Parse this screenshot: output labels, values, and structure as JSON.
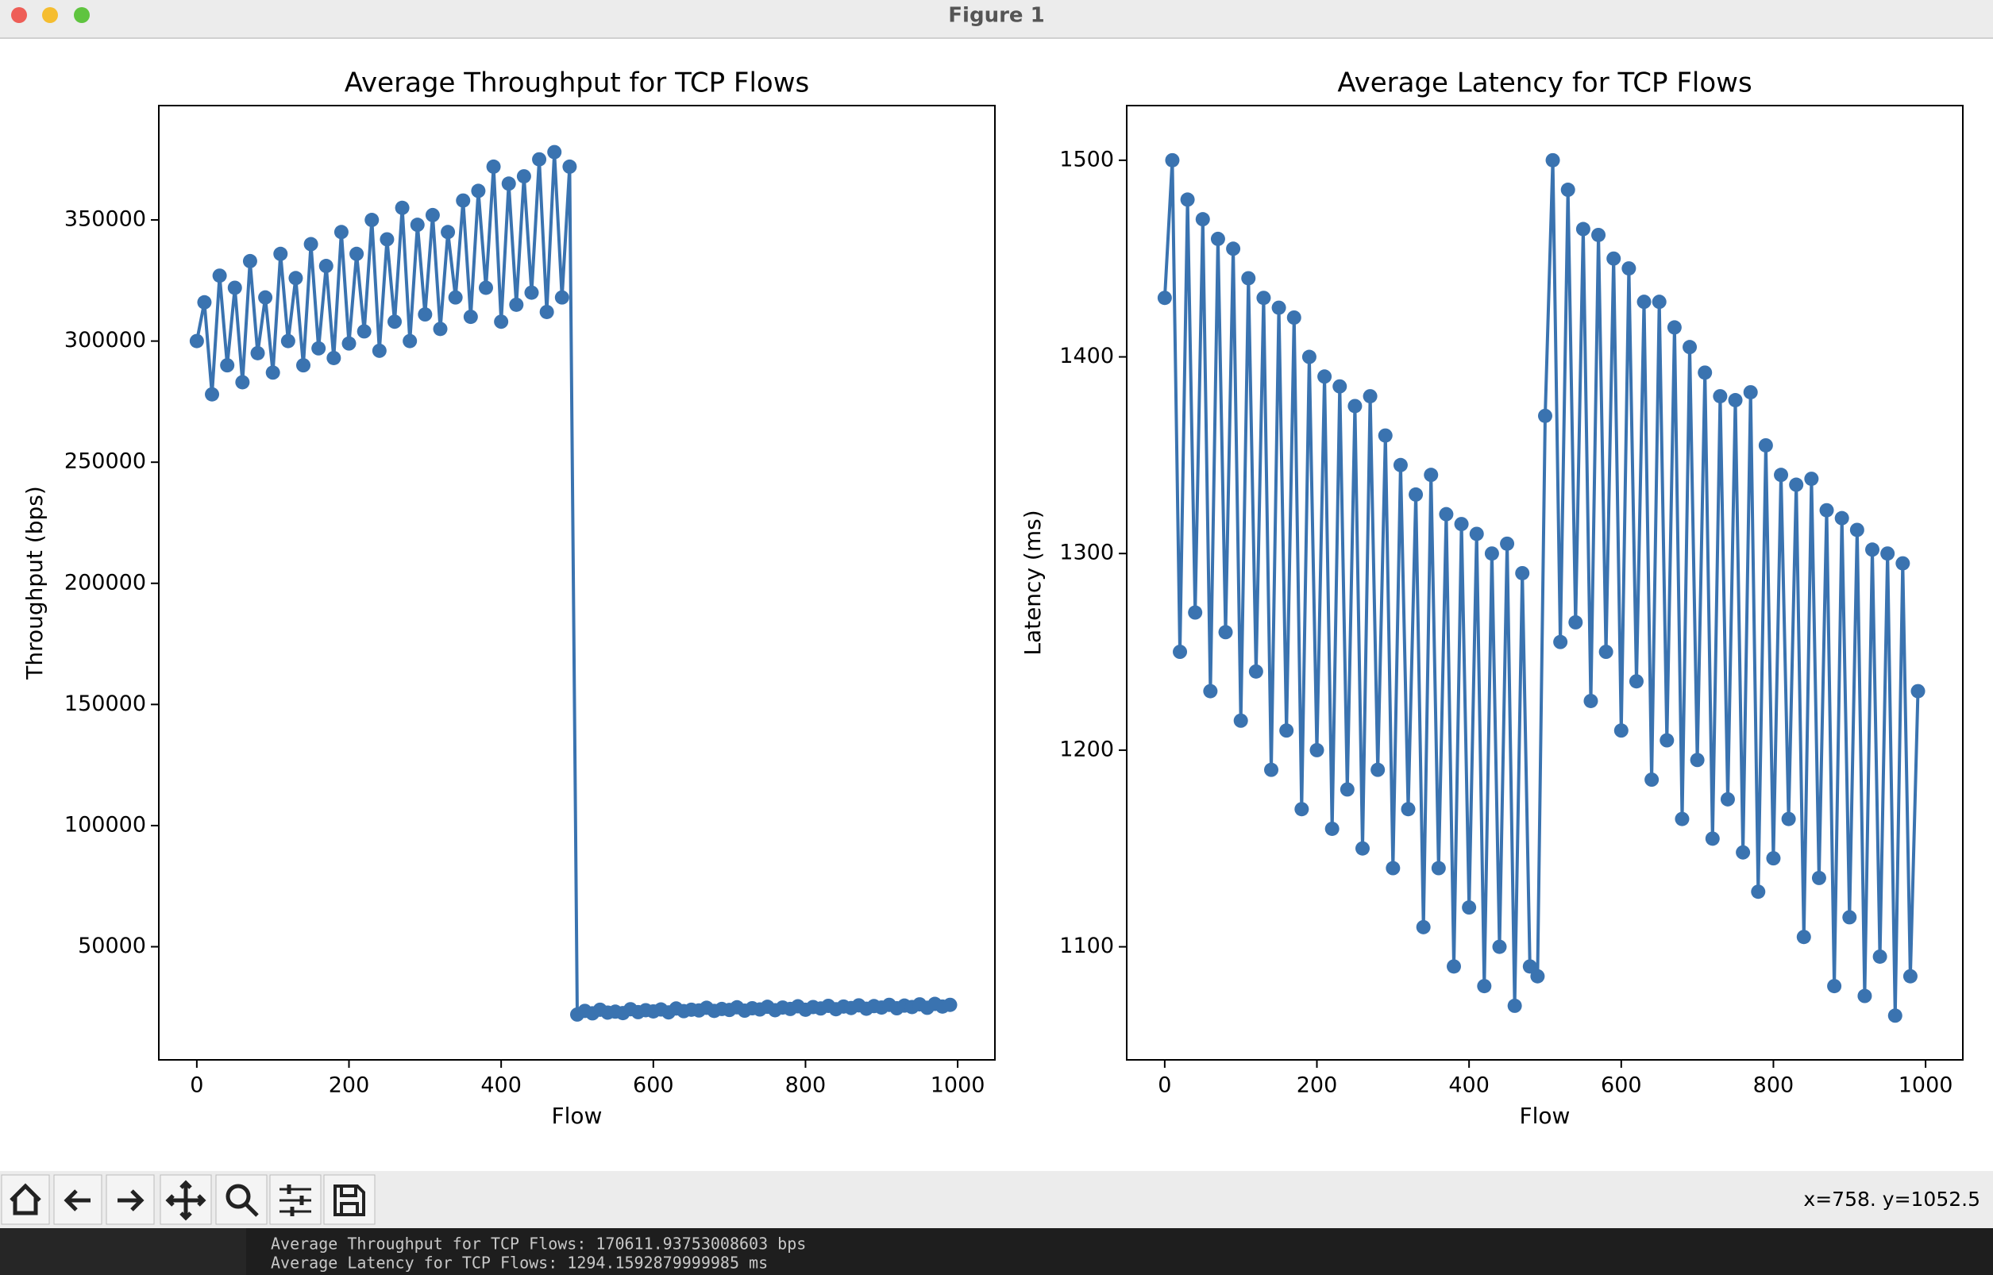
{
  "window": {
    "title": "Figure 1"
  },
  "chart_data": [
    {
      "type": "line",
      "title": "Average Throughput for TCP Flows",
      "xlabel": "Flow",
      "ylabel": "Throughput (bps)",
      "markers": true,
      "x": [
        0,
        10,
        20,
        30,
        40,
        50,
        60,
        70,
        80,
        90,
        100,
        110,
        120,
        130,
        140,
        150,
        160,
        170,
        180,
        190,
        200,
        210,
        220,
        230,
        240,
        250,
        260,
        270,
        280,
        290,
        300,
        310,
        320,
        330,
        340,
        350,
        360,
        370,
        380,
        390,
        400,
        410,
        420,
        430,
        440,
        450,
        460,
        470,
        480,
        490,
        500,
        510,
        520,
        530,
        540,
        550,
        560,
        570,
        580,
        590,
        600,
        610,
        620,
        630,
        640,
        650,
        660,
        670,
        680,
        690,
        700,
        710,
        720,
        730,
        740,
        750,
        760,
        770,
        780,
        790,
        800,
        810,
        820,
        830,
        840,
        850,
        860,
        870,
        880,
        890,
        900,
        910,
        920,
        930,
        940,
        950,
        960,
        970,
        980,
        990
      ],
      "series": [
        {
          "color": "#3a73b0",
          "values": [
            300000,
            316000,
            278000,
            327000,
            290000,
            322000,
            283000,
            333000,
            295000,
            318000,
            287000,
            336000,
            300000,
            326000,
            290000,
            340000,
            297000,
            331000,
            293000,
            345000,
            299000,
            336000,
            304000,
            350000,
            296000,
            342000,
            308000,
            355000,
            300000,
            348000,
            311000,
            352000,
            305000,
            345000,
            318000,
            358000,
            310000,
            362000,
            322000,
            372000,
            308000,
            365000,
            315000,
            368000,
            320000,
            375000,
            312000,
            378000,
            318000,
            372000,
            22000,
            23500,
            22500,
            24000,
            22800,
            23200,
            22600,
            24200,
            23000,
            23800,
            23300,
            24100,
            22900,
            24500,
            23400,
            24000,
            23700,
            24800,
            23500,
            24300,
            23900,
            25000,
            23600,
            24600,
            24100,
            25200,
            23800,
            24900,
            24300,
            25400,
            24000,
            25100,
            24500,
            25600,
            24200,
            25300,
            24700,
            25800,
            24400,
            25500,
            24900,
            26000,
            24600,
            25700,
            25100,
            26200,
            24800,
            26400,
            25300,
            26000
          ]
        }
      ],
      "xlim": [
        -49.95,
        1048.95
      ],
      "xticks": [
        0,
        200,
        400,
        600,
        800,
        1000
      ],
      "ylim": [
        3300,
        397200
      ],
      "yticks": [
        50000,
        100000,
        150000,
        200000,
        250000,
        300000,
        350000
      ]
    },
    {
      "type": "line",
      "title": "Average Latency for TCP Flows",
      "xlabel": "Flow",
      "ylabel": "Latency (ms)",
      "markers": true,
      "x": [
        0,
        10,
        20,
        30,
        40,
        50,
        60,
        70,
        80,
        90,
        100,
        110,
        120,
        130,
        140,
        150,
        160,
        170,
        180,
        190,
        200,
        210,
        220,
        230,
        240,
        250,
        260,
        270,
        280,
        290,
        300,
        310,
        320,
        330,
        340,
        350,
        360,
        370,
        380,
        390,
        400,
        410,
        420,
        430,
        440,
        450,
        460,
        470,
        480,
        490,
        500,
        510,
        520,
        530,
        540,
        550,
        560,
        570,
        580,
        590,
        600,
        610,
        620,
        630,
        640,
        650,
        660,
        670,
        680,
        690,
        700,
        710,
        720,
        730,
        740,
        750,
        760,
        770,
        780,
        790,
        800,
        810,
        820,
        830,
        840,
        850,
        860,
        870,
        880,
        890,
        900,
        910,
        920,
        930,
        940,
        950,
        960,
        970,
        980,
        990
      ],
      "series": [
        {
          "color": "#3a73b0",
          "values": [
            1430,
            1500,
            1250,
            1480,
            1270,
            1470,
            1230,
            1460,
            1260,
            1455,
            1215,
            1440,
            1240,
            1430,
            1190,
            1425,
            1210,
            1420,
            1170,
            1400,
            1200,
            1390,
            1160,
            1385,
            1180,
            1375,
            1150,
            1380,
            1190,
            1360,
            1140,
            1345,
            1170,
            1330,
            1110,
            1340,
            1140,
            1320,
            1090,
            1315,
            1120,
            1310,
            1080,
            1300,
            1100,
            1305,
            1070,
            1290,
            1090,
            1085,
            1370,
            1500,
            1255,
            1485,
            1265,
            1465,
            1225,
            1462,
            1250,
            1450,
            1210,
            1445,
            1235,
            1428,
            1185,
            1428,
            1205,
            1415,
            1165,
            1405,
            1195,
            1392,
            1155,
            1380,
            1175,
            1378,
            1148,
            1382,
            1128,
            1355,
            1145,
            1340,
            1165,
            1335,
            1105,
            1338,
            1135,
            1322,
            1080,
            1318,
            1115,
            1312,
            1075,
            1302,
            1095,
            1300,
            1065,
            1295,
            1085,
            1230
          ]
        }
      ],
      "xlim": [
        -49.95,
        1048.95
      ],
      "xticks": [
        0,
        200,
        400,
        600,
        800,
        1000
      ],
      "ylim": [
        1042.5,
        1527.8
      ],
      "yticks": [
        1100,
        1200,
        1300,
        1400,
        1500
      ]
    }
  ],
  "toolbar": {
    "status": "x=758. y=1052.5"
  },
  "terminal": {
    "lines": [
      "Average Throughput for TCP Flows: 170611.93753008603 bps",
      "Average Latency for TCP Flows: 1294.1592879999985 ms"
    ]
  }
}
